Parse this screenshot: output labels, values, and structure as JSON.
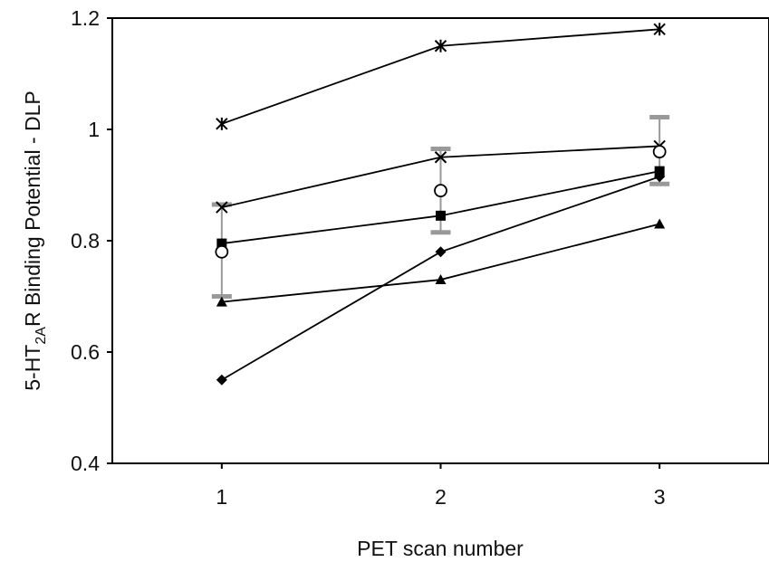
{
  "chart_data": {
    "type": "line",
    "title": "",
    "xlabel": "PET scan number",
    "ylabel": {
      "prefix": "5-HT",
      "subscript": "2A",
      "suffix": "R Binding Potential - DLP"
    },
    "x": [
      1,
      2,
      3
    ],
    "xlim": [
      0.5,
      3.5
    ],
    "ylim": [
      0.4,
      1.2
    ],
    "yticks": [
      "0.4",
      "0.6",
      "0.8",
      "1",
      "1.2"
    ],
    "xticks": [
      "1",
      "2",
      "3"
    ],
    "grid": false,
    "legend": "none",
    "series": [
      {
        "marker": "star",
        "color": "#000000",
        "values": [
          1.01,
          1.15,
          1.18
        ]
      },
      {
        "marker": "x",
        "color": "#000000",
        "values": [
          0.86,
          0.95,
          0.97
        ]
      },
      {
        "marker": "square",
        "color": "#000000",
        "values": [
          0.795,
          0.845,
          0.925
        ]
      },
      {
        "marker": "diamond",
        "color": "#000000",
        "values": [
          0.55,
          0.78,
          0.915
        ]
      },
      {
        "marker": "triangle",
        "color": "#000000",
        "values": [
          0.69,
          0.73,
          0.83
        ]
      }
    ],
    "mean_series": {
      "marker": "circle",
      "values": [
        0.78,
        0.89,
        0.96
      ],
      "error_upper": [
        0.865,
        0.965,
        1.022
      ],
      "error_lower": [
        0.7,
        0.815,
        0.902
      ],
      "error_color": "#999999"
    }
  }
}
